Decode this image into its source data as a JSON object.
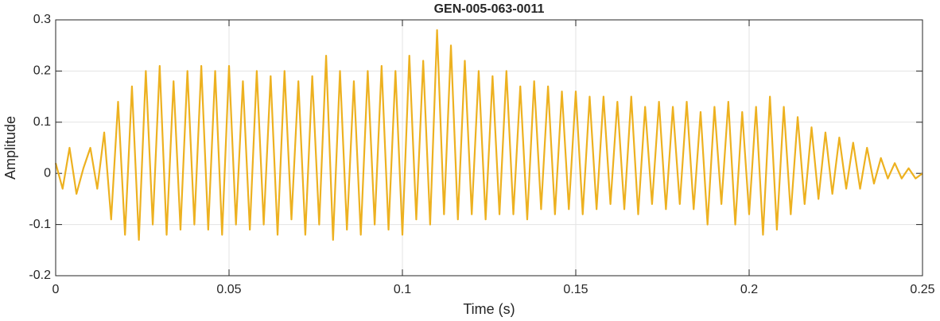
{
  "chart_data": {
    "type": "line",
    "title": "GEN-005-063-0011",
    "xlabel": "Time (s)",
    "ylabel": "Amplitude",
    "x": [
      0,
      0.002,
      0.004,
      0.006,
      0.008,
      0.01,
      0.012,
      0.014,
      0.016,
      0.018,
      0.02,
      0.022,
      0.024,
      0.026,
      0.028,
      0.03,
      0.032,
      0.034,
      0.036,
      0.038,
      0.04,
      0.042,
      0.044,
      0.046,
      0.048,
      0.05,
      0.052,
      0.054,
      0.056,
      0.058,
      0.06,
      0.062,
      0.064,
      0.066,
      0.068,
      0.07,
      0.072,
      0.074,
      0.076,
      0.078,
      0.08,
      0.082,
      0.084,
      0.086,
      0.088,
      0.09,
      0.092,
      0.094,
      0.096,
      0.098,
      0.1,
      0.102,
      0.104,
      0.106,
      0.108,
      0.11,
      0.112,
      0.114,
      0.116,
      0.118,
      0.12,
      0.122,
      0.124,
      0.126,
      0.128,
      0.13,
      0.132,
      0.134,
      0.136,
      0.138,
      0.14,
      0.142,
      0.144,
      0.146,
      0.148,
      0.15,
      0.152,
      0.154,
      0.156,
      0.158,
      0.16,
      0.162,
      0.164,
      0.166,
      0.168,
      0.17,
      0.172,
      0.174,
      0.176,
      0.178,
      0.18,
      0.182,
      0.184,
      0.186,
      0.188,
      0.19,
      0.192,
      0.194,
      0.196,
      0.198,
      0.2,
      0.202,
      0.204,
      0.206,
      0.208,
      0.21,
      0.212,
      0.214,
      0.216,
      0.218,
      0.22,
      0.222,
      0.224,
      0.226,
      0.228,
      0.23,
      0.232,
      0.234,
      0.236,
      0.238,
      0.24,
      0.242,
      0.244,
      0.246,
      0.248,
      0.25
    ],
    "series": [
      {
        "color": "#EDB120",
        "values": [
          0.02,
          -0.03,
          0.05,
          -0.04,
          0.01,
          0.05,
          -0.03,
          0.08,
          -0.09,
          0.14,
          -0.12,
          0.17,
          -0.13,
          0.2,
          -0.1,
          0.21,
          -0.12,
          0.18,
          -0.11,
          0.2,
          -0.1,
          0.21,
          -0.11,
          0.2,
          -0.12,
          0.21,
          -0.1,
          0.18,
          -0.11,
          0.2,
          -0.1,
          0.19,
          -0.12,
          0.2,
          -0.09,
          0.18,
          -0.12,
          0.19,
          -0.1,
          0.23,
          -0.13,
          0.2,
          -0.11,
          0.18,
          -0.12,
          0.2,
          -0.1,
          0.21,
          -0.11,
          0.2,
          -0.12,
          0.23,
          -0.09,
          0.22,
          -0.1,
          0.28,
          -0.08,
          0.25,
          -0.09,
          0.22,
          -0.08,
          0.2,
          -0.09,
          0.19,
          -0.08,
          0.2,
          -0.08,
          0.17,
          -0.09,
          0.18,
          -0.07,
          0.17,
          -0.08,
          0.16,
          -0.07,
          0.16,
          -0.08,
          0.15,
          -0.07,
          0.15,
          -0.06,
          0.14,
          -0.07,
          0.15,
          -0.08,
          0.13,
          -0.06,
          0.14,
          -0.07,
          0.13,
          -0.06,
          0.14,
          -0.07,
          0.12,
          -0.1,
          0.13,
          -0.06,
          0.14,
          -0.1,
          0.12,
          -0.08,
          0.13,
          -0.12,
          0.15,
          -0.11,
          0.13,
          -0.08,
          0.11,
          -0.06,
          0.09,
          -0.05,
          0.08,
          -0.04,
          0.07,
          -0.03,
          0.06,
          -0.03,
          0.05,
          -0.02,
          0.03,
          -0.01,
          0.02,
          -0.01,
          0.01,
          -0.01,
          0
        ]
      }
    ],
    "xlim": [
      0,
      0.25
    ],
    "xticks": [
      0,
      0.05,
      0.1,
      0.15,
      0.2,
      0.25
    ],
    "ylim": [
      -0.2,
      0.3
    ],
    "yticks": [
      -0.2,
      -0.1,
      0,
      0.1,
      0.2,
      0.3
    ],
    "grid": true
  }
}
